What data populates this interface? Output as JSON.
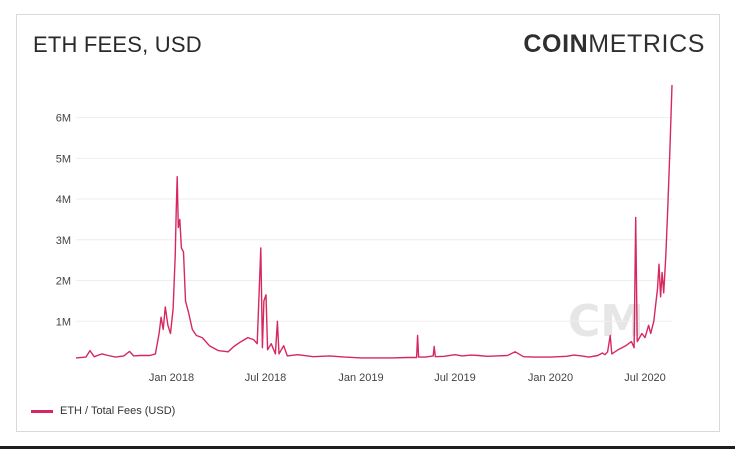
{
  "header": {
    "title": "ETH FEES, USD",
    "brand_bold": "COIN",
    "brand_light": "METRICS"
  },
  "colors": {
    "series": "#d6285f",
    "grid": "#eeeeee",
    "axis_text": "#444444",
    "watermark": "#e6e6e6"
  },
  "chart_data": {
    "type": "line",
    "title": "ETH FEES, USD",
    "xlabel": "",
    "ylabel": "",
    "x_range": [
      "2017-07-01",
      "2020-08-22"
    ],
    "ylim": [
      0,
      6800000
    ],
    "grid": "horizontal",
    "legend_position": "bottom-left",
    "x_ticks": [
      {
        "date": "2018-01-01",
        "label": "Jan 2018"
      },
      {
        "date": "2018-07-01",
        "label": "Jul 2018"
      },
      {
        "date": "2019-01-01",
        "label": "Jan 2019"
      },
      {
        "date": "2019-07-01",
        "label": "Jul 2019"
      },
      {
        "date": "2020-01-01",
        "label": "Jan 2020"
      },
      {
        "date": "2020-07-01",
        "label": "Jul 2020"
      }
    ],
    "y_ticks": [
      {
        "value": 1000000,
        "label": "1M"
      },
      {
        "value": 2000000,
        "label": "2M"
      },
      {
        "value": 3000000,
        "label": "3M"
      },
      {
        "value": 4000000,
        "label": "4M"
      },
      {
        "value": 5000000,
        "label": "5M"
      },
      {
        "value": 6000000,
        "label": "6M"
      }
    ],
    "series": [
      {
        "name": "ETH / Total Fees (USD)",
        "points": [
          [
            "2017-07-01",
            100000
          ],
          [
            "2017-07-20",
            120000
          ],
          [
            "2017-07-28",
            280000
          ],
          [
            "2017-08-05",
            130000
          ],
          [
            "2017-08-20",
            200000
          ],
          [
            "2017-09-01",
            160000
          ],
          [
            "2017-09-15",
            120000
          ],
          [
            "2017-10-01",
            150000
          ],
          [
            "2017-10-12",
            260000
          ],
          [
            "2017-10-20",
            150000
          ],
          [
            "2017-11-01",
            160000
          ],
          [
            "2017-11-20",
            160000
          ],
          [
            "2017-12-01",
            200000
          ],
          [
            "2017-12-08",
            700000
          ],
          [
            "2017-12-12",
            1100000
          ],
          [
            "2017-12-16",
            800000
          ],
          [
            "2017-12-20",
            1350000
          ],
          [
            "2017-12-25",
            900000
          ],
          [
            "2017-12-30",
            700000
          ],
          [
            "2018-01-04",
            1300000
          ],
          [
            "2018-01-08",
            2600000
          ],
          [
            "2018-01-10",
            3700000
          ],
          [
            "2018-01-12",
            4550000
          ],
          [
            "2018-01-14",
            3300000
          ],
          [
            "2018-01-17",
            3500000
          ],
          [
            "2018-01-20",
            2800000
          ],
          [
            "2018-01-24",
            2700000
          ],
          [
            "2018-01-28",
            1500000
          ],
          [
            "2018-02-03",
            1200000
          ],
          [
            "2018-02-10",
            800000
          ],
          [
            "2018-02-18",
            650000
          ],
          [
            "2018-03-01",
            600000
          ],
          [
            "2018-03-15",
            400000
          ],
          [
            "2018-04-01",
            280000
          ],
          [
            "2018-04-20",
            250000
          ],
          [
            "2018-05-01",
            380000
          ],
          [
            "2018-05-15",
            500000
          ],
          [
            "2018-05-28",
            600000
          ],
          [
            "2018-06-08",
            550000
          ],
          [
            "2018-06-15",
            450000
          ],
          [
            "2018-06-22",
            2800000
          ],
          [
            "2018-06-25",
            350000
          ],
          [
            "2018-06-28",
            1500000
          ],
          [
            "2018-07-02",
            1650000
          ],
          [
            "2018-07-05",
            300000
          ],
          [
            "2018-07-12",
            450000
          ],
          [
            "2018-07-20",
            200000
          ],
          [
            "2018-07-24",
            1000000
          ],
          [
            "2018-07-27",
            200000
          ],
          [
            "2018-08-05",
            400000
          ],
          [
            "2018-08-12",
            150000
          ],
          [
            "2018-09-01",
            180000
          ],
          [
            "2018-10-01",
            130000
          ],
          [
            "2018-11-01",
            150000
          ],
          [
            "2018-12-01",
            120000
          ],
          [
            "2019-01-01",
            100000
          ],
          [
            "2019-02-01",
            100000
          ],
          [
            "2019-03-01",
            100000
          ],
          [
            "2019-04-01",
            110000
          ],
          [
            "2019-04-18",
            110000
          ],
          [
            "2019-04-20",
            650000
          ],
          [
            "2019-04-22",
            120000
          ],
          [
            "2019-05-05",
            120000
          ],
          [
            "2019-05-20",
            150000
          ],
          [
            "2019-05-22",
            380000
          ],
          [
            "2019-05-24",
            130000
          ],
          [
            "2019-06-10",
            140000
          ],
          [
            "2019-07-01",
            180000
          ],
          [
            "2019-07-15",
            150000
          ],
          [
            "2019-08-01",
            170000
          ],
          [
            "2019-08-15",
            160000
          ],
          [
            "2019-09-01",
            140000
          ],
          [
            "2019-09-20",
            150000
          ],
          [
            "2019-10-10",
            160000
          ],
          [
            "2019-10-25",
            250000
          ],
          [
            "2019-11-10",
            130000
          ],
          [
            "2019-12-01",
            120000
          ],
          [
            "2020-01-01",
            120000
          ],
          [
            "2020-02-01",
            140000
          ],
          [
            "2020-02-15",
            170000
          ],
          [
            "2020-03-01",
            150000
          ],
          [
            "2020-03-15",
            120000
          ],
          [
            "2020-04-01",
            160000
          ],
          [
            "2020-04-10",
            220000
          ],
          [
            "2020-04-15",
            180000
          ],
          [
            "2020-04-20",
            250000
          ],
          [
            "2020-04-25",
            650000
          ],
          [
            "2020-04-28",
            200000
          ],
          [
            "2020-05-10",
            300000
          ],
          [
            "2020-05-25",
            400000
          ],
          [
            "2020-06-05",
            500000
          ],
          [
            "2020-06-10",
            350000
          ],
          [
            "2020-06-13",
            3550000
          ],
          [
            "2020-06-16",
            500000
          ],
          [
            "2020-06-25",
            700000
          ],
          [
            "2020-07-01",
            600000
          ],
          [
            "2020-07-08",
            900000
          ],
          [
            "2020-07-12",
            700000
          ],
          [
            "2020-07-18",
            1000000
          ],
          [
            "2020-07-25",
            1800000
          ],
          [
            "2020-07-28",
            2400000
          ],
          [
            "2020-07-31",
            1600000
          ],
          [
            "2020-08-03",
            2200000
          ],
          [
            "2020-08-06",
            1700000
          ],
          [
            "2020-08-10",
            2600000
          ],
          [
            "2020-08-14",
            3800000
          ],
          [
            "2020-08-18",
            5200000
          ],
          [
            "2020-08-22",
            6800000
          ]
        ]
      }
    ]
  }
}
